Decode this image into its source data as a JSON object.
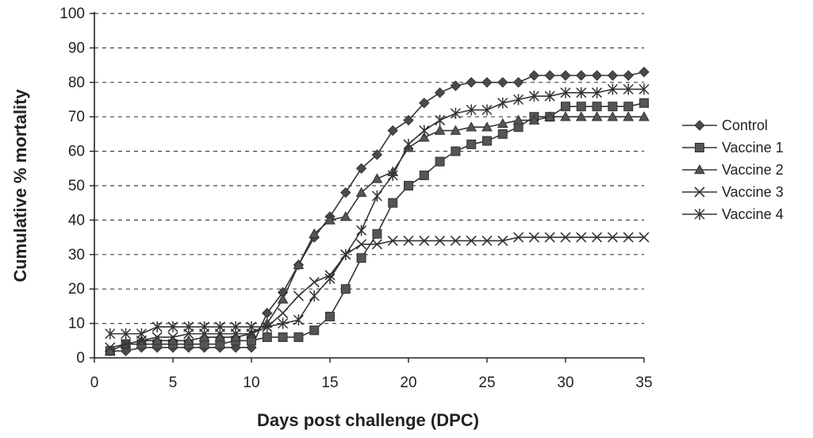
{
  "chart_data": {
    "type": "line",
    "title": "",
    "xlabel": "Days post challenge (DPC)",
    "ylabel": "Cumulative % mortality",
    "xlim": [
      0,
      35
    ],
    "ylim": [
      0,
      100
    ],
    "xticks": [
      0,
      5,
      10,
      15,
      20,
      25,
      30,
      35
    ],
    "yticks": [
      0,
      10,
      20,
      30,
      40,
      50,
      60,
      70,
      80,
      90,
      100
    ],
    "grid": "horizontal dashed",
    "legend_position": "right",
    "x": [
      1,
      2,
      3,
      4,
      5,
      6,
      7,
      8,
      9,
      10,
      11,
      12,
      13,
      14,
      15,
      16,
      17,
      18,
      19,
      20,
      21,
      22,
      23,
      24,
      25,
      26,
      27,
      28,
      29,
      30,
      31,
      32,
      33,
      34,
      35
    ],
    "series": [
      {
        "name": "Control",
        "marker": "diamond",
        "values": [
          2,
          2,
          3,
          3,
          3,
          3,
          3,
          3,
          3,
          3,
          13,
          19,
          27,
          35,
          41,
          48,
          55,
          59,
          66,
          69,
          74,
          77,
          79,
          80,
          80,
          80,
          80,
          82,
          82,
          82,
          82,
          82,
          82,
          82,
          83
        ]
      },
      {
        "name": "Vaccine 1",
        "marker": "square",
        "values": [
          2,
          4,
          4,
          4,
          4,
          4,
          4,
          4,
          5,
          5,
          6,
          6,
          6,
          8,
          12,
          20,
          29,
          36,
          45,
          50,
          53,
          57,
          60,
          62,
          63,
          65,
          67,
          70,
          70,
          73,
          73,
          73,
          73,
          73,
          74
        ]
      },
      {
        "name": "Vaccine 2",
        "marker": "triangle",
        "values": [
          2,
          4,
          5,
          5,
          5,
          5,
          6,
          6,
          6,
          7,
          10,
          17,
          27,
          36,
          40,
          41,
          48,
          52,
          54,
          61,
          64,
          66,
          66,
          67,
          67,
          68,
          69,
          69,
          70,
          70,
          70,
          70,
          70,
          70,
          70
        ]
      },
      {
        "name": "Vaccine 3",
        "marker": "x",
        "values": [
          3,
          4,
          5,
          6,
          6,
          7,
          7,
          7,
          7,
          7,
          9,
          13,
          18,
          22,
          24,
          30,
          33,
          33,
          34,
          34,
          34,
          34,
          34,
          34,
          34,
          34,
          35,
          35,
          35,
          35,
          35,
          35,
          35,
          35,
          35
        ]
      },
      {
        "name": "Vaccine 4",
        "marker": "asterisk",
        "values": [
          7,
          7,
          7,
          9,
          9,
          9,
          9,
          9,
          9,
          9,
          9,
          10,
          11,
          18,
          23,
          30,
          37,
          47,
          53,
          62,
          66,
          69,
          71,
          72,
          72,
          74,
          75,
          76,
          76,
          77,
          77,
          77,
          78,
          78,
          78
        ]
      }
    ]
  }
}
